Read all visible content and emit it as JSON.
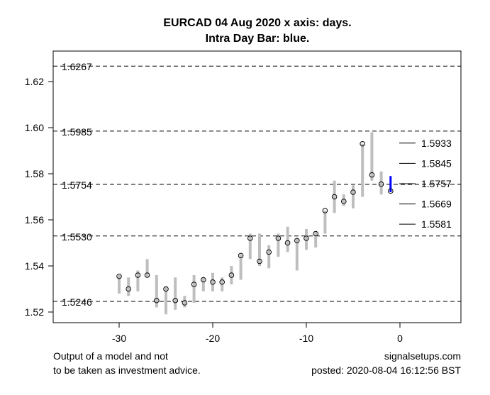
{
  "chart_data": {
    "type": "bar",
    "title_line1": "EURCAD 04 Aug 2020 x axis: days.",
    "title_line2": "Intra Day Bar: blue.",
    "xlim": [
      -36,
      7
    ],
    "ylim": [
      1.515,
      1.6315
    ],
    "x_ticks": [
      -30,
      -20,
      -10,
      0
    ],
    "y_ticks": [
      "1.52",
      "1.54",
      "1.56",
      "1.58",
      "1.60",
      "1.62"
    ],
    "levels": [
      {
        "value": 1.6267,
        "label": "1.6267"
      },
      {
        "value": 1.5985,
        "label": "1.5985"
      },
      {
        "value": 1.5754,
        "label": "1.5754"
      },
      {
        "value": 1.553,
        "label": "1.5530"
      },
      {
        "value": 1.5246,
        "label": "1.5246"
      }
    ],
    "projections": [
      {
        "value": 1.5933,
        "label": "1.5933"
      },
      {
        "value": 1.5845,
        "label": "1.5845"
      },
      {
        "value": 1.5757,
        "label": "1.5757"
      },
      {
        "value": 1.5669,
        "label": "1.5669"
      },
      {
        "value": 1.5581,
        "label": "1.5581"
      }
    ],
    "bars": [
      {
        "day": -30,
        "high": 1.536,
        "low": 1.528,
        "close": 1.5355
      },
      {
        "day": -29,
        "high": 1.535,
        "low": 1.527,
        "close": 1.53
      },
      {
        "day": -28,
        "high": 1.538,
        "low": 1.529,
        "close": 1.536
      },
      {
        "day": -27,
        "high": 1.543,
        "low": 1.535,
        "close": 1.536
      },
      {
        "day": -26,
        "high": 1.536,
        "low": 1.522,
        "close": 1.525
      },
      {
        "day": -25,
        "high": 1.531,
        "low": 1.519,
        "close": 1.53
      },
      {
        "day": -24,
        "high": 1.535,
        "low": 1.521,
        "close": 1.525
      },
      {
        "day": -23,
        "high": 1.527,
        "low": 1.522,
        "close": 1.524
      },
      {
        "day": -22,
        "high": 1.536,
        "low": 1.524,
        "close": 1.532
      },
      {
        "day": -21,
        "high": 1.535,
        "low": 1.529,
        "close": 1.534
      },
      {
        "day": -20,
        "high": 1.537,
        "low": 1.529,
        "close": 1.533
      },
      {
        "day": -19,
        "high": 1.535,
        "low": 1.529,
        "close": 1.533
      },
      {
        "day": -18,
        "high": 1.54,
        "low": 1.532,
        "close": 1.536
      },
      {
        "day": -17,
        "high": 1.545,
        "low": 1.534,
        "close": 1.5445
      },
      {
        "day": -16,
        "high": 1.554,
        "low": 1.543,
        "close": 1.552
      },
      {
        "day": -15,
        "high": 1.554,
        "low": 1.54,
        "close": 1.542
      },
      {
        "day": -14,
        "high": 1.549,
        "low": 1.539,
        "close": 1.546
      },
      {
        "day": -13,
        "high": 1.554,
        "low": 1.544,
        "close": 1.552
      },
      {
        "day": -12,
        "high": 1.557,
        "low": 1.546,
        "close": 1.55
      },
      {
        "day": -11,
        "high": 1.552,
        "low": 1.538,
        "close": 1.551
      },
      {
        "day": -10,
        "high": 1.556,
        "low": 1.547,
        "close": 1.552
      },
      {
        "day": -9,
        "high": 1.555,
        "low": 1.548,
        "close": 1.554
      },
      {
        "day": -8,
        "high": 1.564,
        "low": 1.554,
        "close": 1.564
      },
      {
        "day": -7,
        "high": 1.577,
        "low": 1.563,
        "close": 1.57
      },
      {
        "day": -6,
        "high": 1.571,
        "low": 1.566,
        "close": 1.568
      },
      {
        "day": -5,
        "high": 1.575,
        "low": 1.565,
        "close": 1.572
      },
      {
        "day": -4,
        "high": 1.593,
        "low": 1.57,
        "close": 1.593
      },
      {
        "day": -3,
        "high": 1.598,
        "low": 1.577,
        "close": 1.5795
      },
      {
        "day": -2,
        "high": 1.581,
        "low": 1.571,
        "close": 1.5755
      },
      {
        "day": -1,
        "high": 1.579,
        "low": 1.572,
        "close": 1.5725,
        "intraday": true
      }
    ],
    "colors": {
      "bar": "#bebebe",
      "intraday": "#0000ff"
    }
  },
  "footer": {
    "disclaimer_line1": "Output of a model and not",
    "disclaimer_line2": "to be taken as investment advice.",
    "site": "signalsetups.com",
    "posted": "posted: 2020-08-04 16:12:56 BST"
  }
}
